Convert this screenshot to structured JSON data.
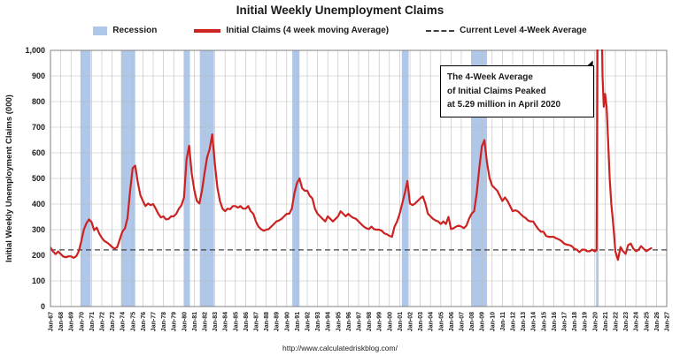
{
  "title": "Initial Weekly Unemployment Claims",
  "legend": [
    {
      "label": "Recession"
    },
    {
      "label": "Initial Claims (4 week moving Average)"
    },
    {
      "label": "Current Level 4-Week Average"
    }
  ],
  "annotation": {
    "lines": [
      "The 4-Week Average",
      "of Initial Claims Peaked",
      "at 5.29 million in April 2020"
    ]
  },
  "footer_url": "http://www.calculatedriskblog.com/",
  "chart_data": {
    "type": "line",
    "title": "Initial Weekly Unemployment Claims",
    "xlabel": "",
    "ylabel": "Initial Weekly Unemployment Claims (000)",
    "x_range": [
      1967,
      2027
    ],
    "ylim": [
      0,
      1000
    ],
    "grid": true,
    "legend_position": "top",
    "y_tick_values": [
      0,
      100,
      200,
      300,
      400,
      500,
      600,
      700,
      800,
      900,
      1000
    ],
    "y_tick_labels": [
      "0",
      "100",
      "200",
      "300",
      "400",
      "500",
      "600",
      "700",
      "800",
      "900",
      "1,000"
    ],
    "x_tick_labels": [
      "Jan-67",
      "Jan-68",
      "Jan-69",
      "Jan-70",
      "Jan-71",
      "Jan-72",
      "Jan-73",
      "Jan-74",
      "Jan-75",
      "Jan-76",
      "Jan-77",
      "Jan-78",
      "Jan-79",
      "Jan-80",
      "Jan-81",
      "Jan-82",
      "Jan-83",
      "Jan-84",
      "Jan-85",
      "Jan-86",
      "Jan-87",
      "Jan-88",
      "Jan-89",
      "Jan-90",
      "Jan-91",
      "Jan-92",
      "Jan-93",
      "Jan-94",
      "Jan-95",
      "Jan-96",
      "Jan-97",
      "Jan-98",
      "Jan-99",
      "Jan-00",
      "Jan-01",
      "Jan-02",
      "Jan-03",
      "Jan-04",
      "Jan-05",
      "Jan-06",
      "Jan-07",
      "Jan-08",
      "Jan-09",
      "Jan-10",
      "Jan-11",
      "Jan-12",
      "Jan-13",
      "Jan-14",
      "Jan-15",
      "Jan-16",
      "Jan-17",
      "Jan-18",
      "Jan-19",
      "Jan-20",
      "Jan-21",
      "Jan-22",
      "Jan-23",
      "Jan-24",
      "Jan-25",
      "Jan-26",
      "Jan-27"
    ],
    "current_level": 221,
    "peak": {
      "date": "April 2020",
      "value_thousands": 5290
    },
    "colors": {
      "line": "#cc2222",
      "recession": "#afc7e8",
      "grid": "#bcbcbc",
      "border": "#808080",
      "current_level": "#404040"
    },
    "recessions": [
      [
        1969.92,
        1970.92
      ],
      [
        1973.87,
        1975.25
      ],
      [
        1980.0,
        1980.58
      ],
      [
        1981.54,
        1982.92
      ],
      [
        1990.54,
        1991.25
      ],
      [
        2001.21,
        2001.87
      ],
      [
        2007.96,
        2009.5
      ],
      [
        2020.12,
        2020.37
      ]
    ],
    "series": [
      {
        "name": "Initial Claims (4 week moving Average)",
        "points": [
          [
            1967,
            230
          ],
          [
            1967.25,
            215
          ],
          [
            1967.5,
            205
          ],
          [
            1967.75,
            215
          ],
          [
            1968,
            205
          ],
          [
            1968.25,
            195
          ],
          [
            1968.5,
            192
          ],
          [
            1968.75,
            196
          ],
          [
            1969,
            196
          ],
          [
            1969.25,
            190
          ],
          [
            1969.5,
            196
          ],
          [
            1969.75,
            215
          ],
          [
            1970,
            255
          ],
          [
            1970.25,
            300
          ],
          [
            1970.5,
            325
          ],
          [
            1970.75,
            340
          ],
          [
            1971,
            330
          ],
          [
            1971.25,
            298
          ],
          [
            1971.5,
            308
          ],
          [
            1971.75,
            285
          ],
          [
            1972,
            268
          ],
          [
            1972.25,
            256
          ],
          [
            1972.5,
            250
          ],
          [
            1972.75,
            242
          ],
          [
            1973,
            232
          ],
          [
            1973.25,
            226
          ],
          [
            1973.5,
            232
          ],
          [
            1973.75,
            262
          ],
          [
            1974,
            292
          ],
          [
            1974.25,
            305
          ],
          [
            1974.5,
            345
          ],
          [
            1974.75,
            450
          ],
          [
            1975,
            540
          ],
          [
            1975.25,
            550
          ],
          [
            1975.5,
            485
          ],
          [
            1975.75,
            435
          ],
          [
            1976,
            412
          ],
          [
            1976.25,
            392
          ],
          [
            1976.5,
            402
          ],
          [
            1976.75,
            396
          ],
          [
            1977,
            400
          ],
          [
            1977.25,
            382
          ],
          [
            1977.5,
            362
          ],
          [
            1977.75,
            348
          ],
          [
            1978,
            352
          ],
          [
            1978.25,
            340
          ],
          [
            1978.5,
            342
          ],
          [
            1978.75,
            352
          ],
          [
            1979,
            352
          ],
          [
            1979.25,
            362
          ],
          [
            1979.5,
            382
          ],
          [
            1979.75,
            395
          ],
          [
            1980,
            425
          ],
          [
            1980.25,
            575
          ],
          [
            1980.5,
            628
          ],
          [
            1980.75,
            520
          ],
          [
            1981,
            455
          ],
          [
            1981.25,
            412
          ],
          [
            1981.5,
            402
          ],
          [
            1981.75,
            452
          ],
          [
            1982,
            520
          ],
          [
            1982.25,
            582
          ],
          [
            1982.5,
            615
          ],
          [
            1982.75,
            672
          ],
          [
            1983,
            560
          ],
          [
            1983.25,
            465
          ],
          [
            1983.5,
            412
          ],
          [
            1983.75,
            382
          ],
          [
            1984,
            372
          ],
          [
            1984.25,
            382
          ],
          [
            1984.5,
            380
          ],
          [
            1984.75,
            392
          ],
          [
            1985,
            392
          ],
          [
            1985.25,
            386
          ],
          [
            1985.5,
            392
          ],
          [
            1985.75,
            382
          ],
          [
            1986,
            382
          ],
          [
            1986.25,
            392
          ],
          [
            1986.5,
            372
          ],
          [
            1986.75,
            362
          ],
          [
            1987,
            332
          ],
          [
            1987.25,
            312
          ],
          [
            1987.5,
            302
          ],
          [
            1987.75,
            296
          ],
          [
            1988,
            300
          ],
          [
            1988.25,
            302
          ],
          [
            1988.5,
            312
          ],
          [
            1988.75,
            322
          ],
          [
            1989,
            332
          ],
          [
            1989.25,
            336
          ],
          [
            1989.5,
            342
          ],
          [
            1989.75,
            352
          ],
          [
            1990,
            362
          ],
          [
            1990.25,
            362
          ],
          [
            1990.5,
            382
          ],
          [
            1990.75,
            442
          ],
          [
            1991,
            482
          ],
          [
            1991.25,
            500
          ],
          [
            1991.5,
            462
          ],
          [
            1991.75,
            452
          ],
          [
            1992,
            452
          ],
          [
            1992.25,
            432
          ],
          [
            1992.5,
            422
          ],
          [
            1992.75,
            382
          ],
          [
            1993,
            362
          ],
          [
            1993.25,
            352
          ],
          [
            1993.5,
            342
          ],
          [
            1993.75,
            332
          ],
          [
            1994,
            352
          ],
          [
            1994.25,
            342
          ],
          [
            1994.5,
            332
          ],
          [
            1994.75,
            342
          ],
          [
            1995,
            352
          ],
          [
            1995.25,
            372
          ],
          [
            1995.5,
            362
          ],
          [
            1995.75,
            352
          ],
          [
            1996,
            362
          ],
          [
            1996.25,
            352
          ],
          [
            1996.5,
            346
          ],
          [
            1996.75,
            342
          ],
          [
            1997,
            332
          ],
          [
            1997.25,
            322
          ],
          [
            1997.5,
            312
          ],
          [
            1997.75,
            306
          ],
          [
            1998,
            302
          ],
          [
            1998.25,
            312
          ],
          [
            1998.5,
            302
          ],
          [
            1998.75,
            300
          ],
          [
            1999,
            300
          ],
          [
            1999.25,
            296
          ],
          [
            1999.5,
            286
          ],
          [
            1999.75,
            282
          ],
          [
            2000,
            276
          ],
          [
            2000.25,
            272
          ],
          [
            2000.5,
            312
          ],
          [
            2000.75,
            332
          ],
          [
            2001,
            362
          ],
          [
            2001.25,
            402
          ],
          [
            2001.5,
            442
          ],
          [
            2001.75,
            490
          ],
          [
            2002,
            402
          ],
          [
            2002.25,
            396
          ],
          [
            2002.5,
            402
          ],
          [
            2002.75,
            412
          ],
          [
            2003,
            422
          ],
          [
            2003.25,
            430
          ],
          [
            2003.5,
            402
          ],
          [
            2003.75,
            362
          ],
          [
            2004,
            352
          ],
          [
            2004.25,
            342
          ],
          [
            2004.5,
            336
          ],
          [
            2004.75,
            332
          ],
          [
            2005,
            322
          ],
          [
            2005.25,
            332
          ],
          [
            2005.5,
            322
          ],
          [
            2005.75,
            350
          ],
          [
            2006,
            302
          ],
          [
            2006.25,
            306
          ],
          [
            2006.5,
            312
          ],
          [
            2006.75,
            316
          ],
          [
            2007,
            312
          ],
          [
            2007.25,
            306
          ],
          [
            2007.5,
            316
          ],
          [
            2007.75,
            342
          ],
          [
            2008,
            362
          ],
          [
            2008.25,
            372
          ],
          [
            2008.5,
            442
          ],
          [
            2008.75,
            540
          ],
          [
            2009,
            625
          ],
          [
            2009.25,
            650
          ],
          [
            2009.5,
            562
          ],
          [
            2009.75,
            502
          ],
          [
            2010,
            472
          ],
          [
            2010.25,
            462
          ],
          [
            2010.5,
            452
          ],
          [
            2010.75,
            432
          ],
          [
            2011,
            412
          ],
          [
            2011.25,
            426
          ],
          [
            2011.5,
            412
          ],
          [
            2011.75,
            392
          ],
          [
            2012,
            372
          ],
          [
            2012.25,
            376
          ],
          [
            2012.5,
            372
          ],
          [
            2012.75,
            362
          ],
          [
            2013,
            352
          ],
          [
            2013.25,
            346
          ],
          [
            2013.5,
            336
          ],
          [
            2013.75,
            332
          ],
          [
            2014,
            332
          ],
          [
            2014.25,
            316
          ],
          [
            2014.5,
            302
          ],
          [
            2014.75,
            292
          ],
          [
            2015,
            292
          ],
          [
            2015.25,
            276
          ],
          [
            2015.5,
            272
          ],
          [
            2015.75,
            272
          ],
          [
            2016,
            272
          ],
          [
            2016.25,
            266
          ],
          [
            2016.5,
            262
          ],
          [
            2016.75,
            256
          ],
          [
            2017,
            246
          ],
          [
            2017.25,
            242
          ],
          [
            2017.5,
            240
          ],
          [
            2017.75,
            236
          ],
          [
            2018,
            226
          ],
          [
            2018.25,
            222
          ],
          [
            2018.5,
            212
          ],
          [
            2018.75,
            222
          ],
          [
            2019,
            222
          ],
          [
            2019.25,
            216
          ],
          [
            2019.5,
            216
          ],
          [
            2019.75,
            222
          ],
          [
            2020,
            215
          ],
          [
            2020.17,
            220
          ],
          [
            2020.3,
            5290
          ],
          [
            2020.45,
            2500
          ],
          [
            2020.6,
            1300
          ],
          [
            2020.75,
            900
          ],
          [
            2020.87,
            780
          ],
          [
            2021,
            830
          ],
          [
            2021.15,
            780
          ],
          [
            2021.3,
            640
          ],
          [
            2021.45,
            500
          ],
          [
            2021.6,
            400
          ],
          [
            2021.75,
            340
          ],
          [
            2021.9,
            270
          ],
          [
            2022,
            215
          ],
          [
            2022.25,
            182
          ],
          [
            2022.5,
            232
          ],
          [
            2022.75,
            216
          ],
          [
            2023,
            206
          ],
          [
            2023.25,
            240
          ],
          [
            2023.5,
            246
          ],
          [
            2023.75,
            226
          ],
          [
            2024,
            216
          ],
          [
            2024.25,
            221
          ],
          [
            2024.5,
            236
          ],
          [
            2024.75,
            226
          ],
          [
            2025,
            216
          ],
          [
            2025.25,
            222
          ],
          [
            2025.5,
            228
          ]
        ]
      }
    ]
  }
}
